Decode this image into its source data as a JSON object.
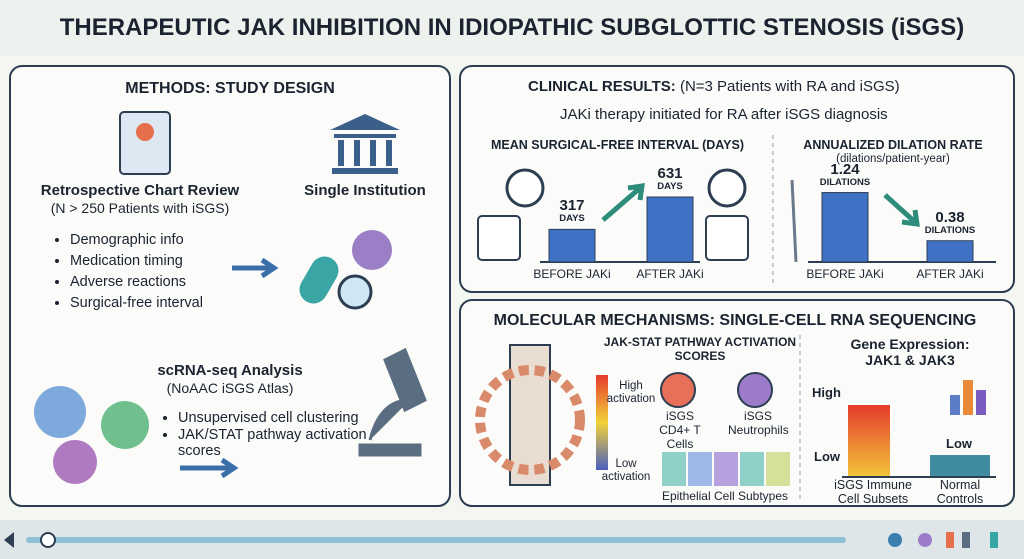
{
  "header": {
    "title": "THERAPEUTIC JAK INHIBITION IN IDIOPATHIC SUBGLOTTIC STENOSIS (iSGS)"
  },
  "methods": {
    "title": "METHODS: STUDY DESIGN",
    "review_title": "Retrospective Chart Review",
    "review_subtitle": "(N > 250 Patients with iSGS)",
    "institution": "Single Institution",
    "items": [
      "Demographic info",
      "Medication timing",
      "Adverse reactions",
      "Surgical-free interval"
    ],
    "analysis_title": "scRNA-seq Analysis",
    "analysis_subtitle": "(NoAAC iSGS Atlas)",
    "analysis_items": [
      "Unsupervised cell clustering",
      "JAK/STAT pathway activation scores"
    ]
  },
  "clinical": {
    "title": "CLINICAL RESULTS:",
    "subtitle": "(N=3 Patients with RA and iSGS)",
    "note": "JAKi therapy initiated for RA after iSGS diagnosis",
    "interval": {
      "title": "MEAN SURGICAL-FREE INTERVAL (DAYS)",
      "categories": [
        "BEFORE JAKi",
        "AFTER JAKi"
      ],
      "values": [
        317,
        631
      ],
      "unit": "DAYS"
    },
    "dilation": {
      "title": "ANNUALIZED DILATION RATE",
      "subtitle": "(dilations/patient-year)",
      "categories": [
        "BEFORE JAKi",
        "AFTER JAKi"
      ],
      "values": [
        1.24,
        0.38
      ],
      "unit": "DILATIONS"
    }
  },
  "molecular": {
    "title": "MOLECULAR MECHANISMS: SINGLE-CELL RNA SEQUENCING",
    "pathway_title": "JAK-STAT PATHWAY ACTIVATION SCORES",
    "scale_high": "High activation",
    "scale_low": "Low activation",
    "cells": [
      "iSGS CD4+ T Cells",
      "iSGS Neutrophils"
    ],
    "epithelial": "Epithelial Cell Subtypes",
    "expression_title": "Gene Expression: JAK1 & JAK3",
    "expr_high": "High",
    "expr_low": "Low",
    "control_low": "Low",
    "groups": [
      "iSGS Immune Cell Subsets",
      "Normal Controls"
    ]
  }
}
